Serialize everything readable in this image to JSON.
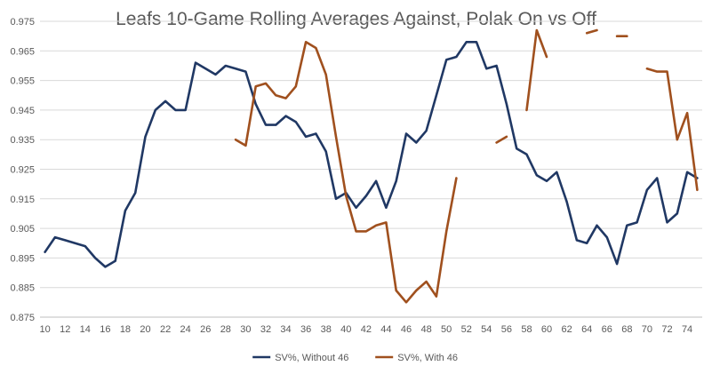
{
  "chart_data": {
    "type": "line",
    "title": "Leafs 10-Game Rolling Averages Against, Polak On vs Off",
    "xlabel": "",
    "ylabel": "",
    "x": [
      10,
      11,
      12,
      13,
      14,
      15,
      16,
      17,
      18,
      19,
      20,
      21,
      22,
      23,
      24,
      25,
      26,
      27,
      28,
      29,
      30,
      31,
      32,
      33,
      34,
      35,
      36,
      37,
      38,
      39,
      40,
      41,
      42,
      43,
      44,
      45,
      46,
      47,
      48,
      49,
      50,
      51,
      52,
      53,
      54,
      55,
      56,
      57,
      58,
      59,
      60,
      61,
      62,
      63,
      64,
      65,
      66,
      67,
      68,
      69,
      70,
      71,
      72,
      73,
      74,
      75
    ],
    "xticks": [
      10,
      12,
      14,
      16,
      18,
      20,
      22,
      24,
      26,
      28,
      30,
      32,
      34,
      36,
      38,
      40,
      42,
      44,
      46,
      48,
      50,
      52,
      54,
      56,
      58,
      60,
      62,
      64,
      66,
      68,
      70,
      72,
      74
    ],
    "xlim": [
      9.5,
      75.5
    ],
    "ylim": [
      0.875,
      0.975
    ],
    "yticks": [
      0.875,
      0.885,
      0.895,
      0.905,
      0.915,
      0.925,
      0.935,
      0.945,
      0.955,
      0.965,
      0.975
    ],
    "grid": true,
    "legend_position": "bottom",
    "series": [
      {
        "name": "SV%, Without 46",
        "color": "#203864",
        "values": [
          0.897,
          0.902,
          0.901,
          0.9,
          0.899,
          0.895,
          0.892,
          0.894,
          0.911,
          0.917,
          0.936,
          0.945,
          0.948,
          0.945,
          0.945,
          0.961,
          0.959,
          0.957,
          0.96,
          0.959,
          0.958,
          0.947,
          0.94,
          0.94,
          0.943,
          0.941,
          0.936,
          0.937,
          0.931,
          0.915,
          0.917,
          0.912,
          0.916,
          0.921,
          0.912,
          0.921,
          0.937,
          0.934,
          0.938,
          0.95,
          0.962,
          0.963,
          0.968,
          0.968,
          0.959,
          0.96,
          0.947,
          0.932,
          0.93,
          0.923,
          0.921,
          0.924,
          0.914,
          0.901,
          0.9,
          0.906,
          0.902,
          0.893,
          0.906,
          0.907,
          0.918,
          0.922,
          0.907,
          0.91,
          0.924,
          0.922
        ]
      },
      {
        "name": "SV%, With 46",
        "color": "#A0501E",
        "values": [
          null,
          null,
          null,
          null,
          null,
          null,
          null,
          null,
          null,
          null,
          null,
          null,
          null,
          null,
          null,
          null,
          null,
          null,
          null,
          0.935,
          0.933,
          0.953,
          0.954,
          0.95,
          0.949,
          0.953,
          0.968,
          0.966,
          0.957,
          0.936,
          0.916,
          0.904,
          0.904,
          0.906,
          0.907,
          0.884,
          0.88,
          0.884,
          0.887,
          0.882,
          0.904,
          0.922,
          null,
          null,
          null,
          0.934,
          0.936,
          null,
          0.945,
          0.972,
          0.963,
          null,
          null,
          null,
          0.971,
          0.972,
          null,
          0.97,
          0.97,
          null,
          0.959,
          0.958,
          0.958,
          0.935,
          0.944,
          0.918
        ]
      }
    ]
  }
}
